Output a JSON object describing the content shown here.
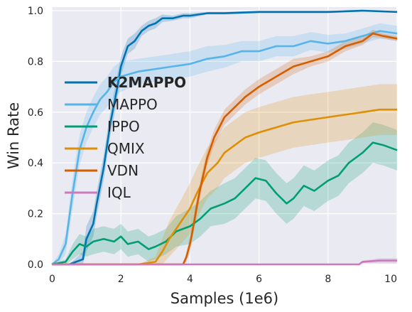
{
  "chart_data": {
    "type": "line",
    "xlabel": "Samples (1e6)",
    "ylabel": "Win Rate",
    "xlim": [
      0,
      10
    ],
    "ylim": [
      0,
      1
    ],
    "xticks": [
      "0",
      "2",
      "4",
      "6",
      "8",
      "10"
    ],
    "yticks": [
      "0.0",
      "0.2",
      "0.4",
      "0.6",
      "0.8",
      "1.0"
    ],
    "grid": true,
    "legend_position": "center-left",
    "series": [
      {
        "name": "K2MAPPO",
        "color": "#0173b2",
        "bold": true,
        "x": [
          0,
          0.5,
          0.9,
          1.0,
          1.2,
          1.3,
          1.5,
          1.7,
          1.9,
          2.0,
          2.2,
          2.4,
          2.6,
          2.8,
          3.0,
          3.2,
          3.5,
          3.8,
          4.0,
          4.5,
          5.0,
          6.0,
          7.0,
          8.0,
          9.0,
          10.0
        ],
        "y": [
          0,
          0,
          0.02,
          0.1,
          0.16,
          0.24,
          0.38,
          0.56,
          0.7,
          0.78,
          0.86,
          0.88,
          0.92,
          0.94,
          0.95,
          0.97,
          0.97,
          0.98,
          0.98,
          0.99,
          0.99,
          0.995,
          0.995,
          0.995,
          1.0,
          0.995
        ],
        "band": [
          0,
          0,
          0.03,
          0.05,
          0.05,
          0.05,
          0.05,
          0.05,
          0.05,
          0.04,
          0.03,
          0.03,
          0.02,
          0.02,
          0.02,
          0.015,
          0.01,
          0.01,
          0.01,
          0.005,
          0.005,
          0.005,
          0.005,
          0.005,
          0.003,
          0.003
        ]
      },
      {
        "name": "MAPPO",
        "color": "#56b4e9",
        "bold": false,
        "x": [
          0,
          0.2,
          0.4,
          0.6,
          0.8,
          1.0,
          1.2,
          1.4,
          1.6,
          1.8,
          2.0,
          2.5,
          3.0,
          3.5,
          4.0,
          4.5,
          5.0,
          5.5,
          6.0,
          6.5,
          7.0,
          7.5,
          8.0,
          8.5,
          9.0,
          9.5,
          10.0
        ],
        "y": [
          0,
          0.02,
          0.08,
          0.28,
          0.45,
          0.54,
          0.6,
          0.65,
          0.68,
          0.72,
          0.74,
          0.76,
          0.77,
          0.78,
          0.79,
          0.81,
          0.82,
          0.84,
          0.84,
          0.86,
          0.86,
          0.88,
          0.87,
          0.88,
          0.9,
          0.92,
          0.91
        ],
        "band": [
          0,
          0.02,
          0.04,
          0.06,
          0.06,
          0.06,
          0.06,
          0.06,
          0.06,
          0.06,
          0.06,
          0.05,
          0.05,
          0.05,
          0.05,
          0.05,
          0.045,
          0.04,
          0.04,
          0.04,
          0.04,
          0.035,
          0.035,
          0.03,
          0.03,
          0.03,
          0.03
        ]
      },
      {
        "name": "IPPO",
        "color": "#029e73",
        "bold": false,
        "x": [
          0,
          0.4,
          0.6,
          0.8,
          1.0,
          1.2,
          1.5,
          1.8,
          2.0,
          2.2,
          2.5,
          2.8,
          3.0,
          3.3,
          3.6,
          4.0,
          4.3,
          4.6,
          5.0,
          5.3,
          5.6,
          5.9,
          6.2,
          6.5,
          6.8,
          7.0,
          7.3,
          7.6,
          8.0,
          8.3,
          8.6,
          9.0,
          9.3,
          9.6,
          10.0
        ],
        "y": [
          0,
          0.01,
          0.05,
          0.08,
          0.07,
          0.09,
          0.1,
          0.09,
          0.11,
          0.08,
          0.09,
          0.06,
          0.07,
          0.09,
          0.13,
          0.15,
          0.18,
          0.22,
          0.24,
          0.26,
          0.3,
          0.34,
          0.33,
          0.28,
          0.24,
          0.26,
          0.31,
          0.29,
          0.33,
          0.35,
          0.4,
          0.44,
          0.48,
          0.47,
          0.45
        ],
        "band": [
          0,
          0.01,
          0.03,
          0.04,
          0.04,
          0.05,
          0.05,
          0.05,
          0.05,
          0.05,
          0.05,
          0.05,
          0.05,
          0.05,
          0.06,
          0.07,
          0.07,
          0.07,
          0.08,
          0.08,
          0.08,
          0.08,
          0.08,
          0.08,
          0.08,
          0.08,
          0.08,
          0.08,
          0.08,
          0.08,
          0.08,
          0.08,
          0.08,
          0.08,
          0.08
        ]
      },
      {
        "name": "QMIX",
        "color": "#de8f05",
        "bold": false,
        "x": [
          0,
          2.5,
          3.0,
          3.2,
          3.4,
          3.6,
          3.8,
          4.0,
          4.2,
          4.5,
          4.8,
          5.0,
          5.3,
          5.6,
          6.0,
          6.5,
          7.0,
          7.5,
          8.0,
          8.5,
          9.0,
          9.5,
          10.0
        ],
        "y": [
          0,
          0,
          0.01,
          0.05,
          0.1,
          0.14,
          0.18,
          0.22,
          0.28,
          0.36,
          0.4,
          0.44,
          0.47,
          0.5,
          0.52,
          0.54,
          0.56,
          0.57,
          0.58,
          0.59,
          0.6,
          0.61,
          0.61
        ],
        "band": [
          0,
          0,
          0.02,
          0.05,
          0.07,
          0.08,
          0.09,
          0.1,
          0.1,
          0.1,
          0.1,
          0.1,
          0.1,
          0.1,
          0.1,
          0.1,
          0.1,
          0.1,
          0.1,
          0.1,
          0.1,
          0.1,
          0.1
        ]
      },
      {
        "name": "VDN",
        "color": "#d55e00",
        "bold": false,
        "x": [
          0,
          3.8,
          3.9,
          4.0,
          4.1,
          4.2,
          4.3,
          4.4,
          4.5,
          4.7,
          5.0,
          5.3,
          5.6,
          6.0,
          6.5,
          7.0,
          7.5,
          8.0,
          8.5,
          9.0,
          9.3,
          9.6,
          10.0
        ],
        "y": [
          0,
          0,
          0.03,
          0.08,
          0.15,
          0.23,
          0.3,
          0.36,
          0.42,
          0.5,
          0.58,
          0.62,
          0.66,
          0.7,
          0.74,
          0.78,
          0.8,
          0.82,
          0.86,
          0.88,
          0.91,
          0.9,
          0.89
        ],
        "band": [
          0,
          0,
          0.02,
          0.03,
          0.03,
          0.03,
          0.03,
          0.03,
          0.03,
          0.03,
          0.03,
          0.03,
          0.03,
          0.03,
          0.03,
          0.03,
          0.02,
          0.02,
          0.02,
          0.015,
          0.015,
          0.01,
          0.01
        ]
      },
      {
        "name": "IQL",
        "color": "#cc78bc",
        "bold": false,
        "x": [
          0,
          2.0,
          4.0,
          6.0,
          8.0,
          8.9,
          9.0,
          9.5,
          10.0
        ],
        "y": [
          0,
          0,
          0,
          0,
          0,
          0,
          0.01,
          0.015,
          0.015
        ],
        "band": [
          0,
          0,
          0,
          0,
          0,
          0,
          0.005,
          0.01,
          0.01
        ]
      }
    ]
  }
}
